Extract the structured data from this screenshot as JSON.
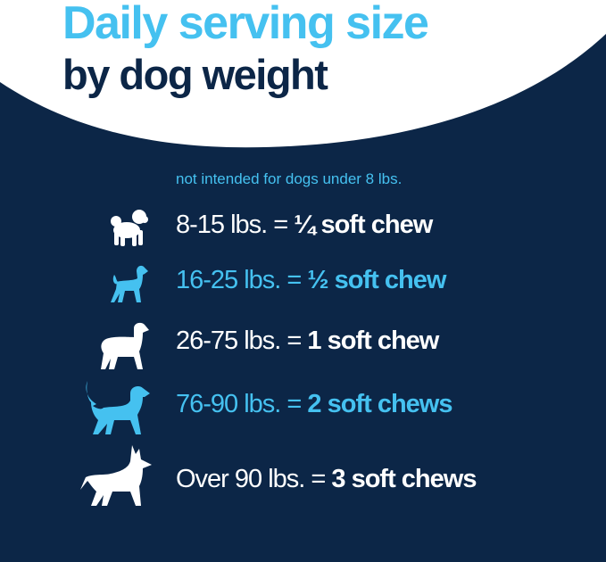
{
  "header": {
    "title": "Daily serving size",
    "subtitle": "by dog weight"
  },
  "note": "not intended for dogs under 8 lbs.",
  "colors": {
    "navy": "#0c2647",
    "accent_blue": "#45c1f0",
    "white": "#ffffff"
  },
  "rows": [
    {
      "weight": "8-15 lbs. =",
      "dose": "¼ soft chew",
      "color": "white",
      "icon": "small-fluffy-dog-icon"
    },
    {
      "weight": "16-25 lbs. =",
      "dose": "½ soft chew",
      "color": "blue",
      "icon": "small-dog-icon"
    },
    {
      "weight": "26-75 lbs. =",
      "dose": "1 soft chew",
      "color": "white",
      "icon": "medium-dog-icon"
    },
    {
      "weight": "76-90 lbs. =",
      "dose": "2 soft chews",
      "color": "blue",
      "icon": "large-fluffy-tail-dog-icon"
    },
    {
      "weight": "Over 90 lbs. =",
      "dose": "3 soft chews",
      "color": "white",
      "icon": "pointy-ear-dog-icon"
    }
  ]
}
